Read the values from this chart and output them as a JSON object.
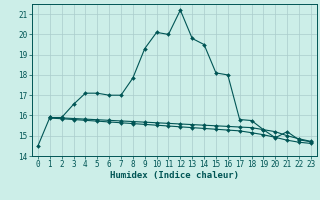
{
  "title": "",
  "xlabel": "Humidex (Indice chaleur)",
  "bg_color": "#cceee8",
  "grid_color": "#aacccc",
  "line_color": "#005555",
  "xlim": [
    -0.5,
    23.5
  ],
  "ylim": [
    14,
    21.5
  ],
  "yticks": [
    14,
    15,
    16,
    17,
    18,
    19,
    20,
    21
  ],
  "xticks": [
    0,
    1,
    2,
    3,
    4,
    5,
    6,
    7,
    8,
    9,
    10,
    11,
    12,
    13,
    14,
    15,
    16,
    17,
    18,
    19,
    20,
    21,
    22,
    23
  ],
  "curve1_x": [
    0,
    1,
    2,
    3,
    4,
    5,
    6,
    7,
    8,
    9,
    10,
    11,
    12,
    13,
    14,
    15,
    16,
    17,
    18,
    19,
    20,
    21,
    22,
    23
  ],
  "curve1_y": [
    14.5,
    15.9,
    15.9,
    16.55,
    17.1,
    17.1,
    17.0,
    17.0,
    17.85,
    19.3,
    20.1,
    20.0,
    21.2,
    19.8,
    19.5,
    18.1,
    18.0,
    15.8,
    15.75,
    15.3,
    14.9,
    15.2,
    14.8,
    14.7
  ],
  "curve2_x": [
    1,
    2,
    3,
    4,
    5,
    6,
    7,
    8,
    9,
    10,
    11,
    12,
    13,
    14,
    15,
    16,
    17,
    18,
    19,
    20,
    21,
    22,
    23
  ],
  "curve2_y": [
    15.9,
    15.88,
    15.85,
    15.82,
    15.79,
    15.76,
    15.73,
    15.7,
    15.67,
    15.64,
    15.61,
    15.58,
    15.55,
    15.52,
    15.49,
    15.46,
    15.43,
    15.4,
    15.3,
    15.2,
    15.0,
    14.85,
    14.72
  ],
  "curve3_x": [
    1,
    2,
    3,
    4,
    5,
    6,
    7,
    8,
    9,
    10,
    11,
    12,
    13,
    14,
    15,
    16,
    17,
    18,
    19,
    20,
    21,
    22,
    23
  ],
  "curve3_y": [
    15.87,
    15.84,
    15.8,
    15.76,
    15.72,
    15.68,
    15.64,
    15.6,
    15.56,
    15.52,
    15.48,
    15.44,
    15.4,
    15.36,
    15.32,
    15.28,
    15.24,
    15.15,
    15.05,
    14.92,
    14.78,
    14.68,
    14.62
  ]
}
